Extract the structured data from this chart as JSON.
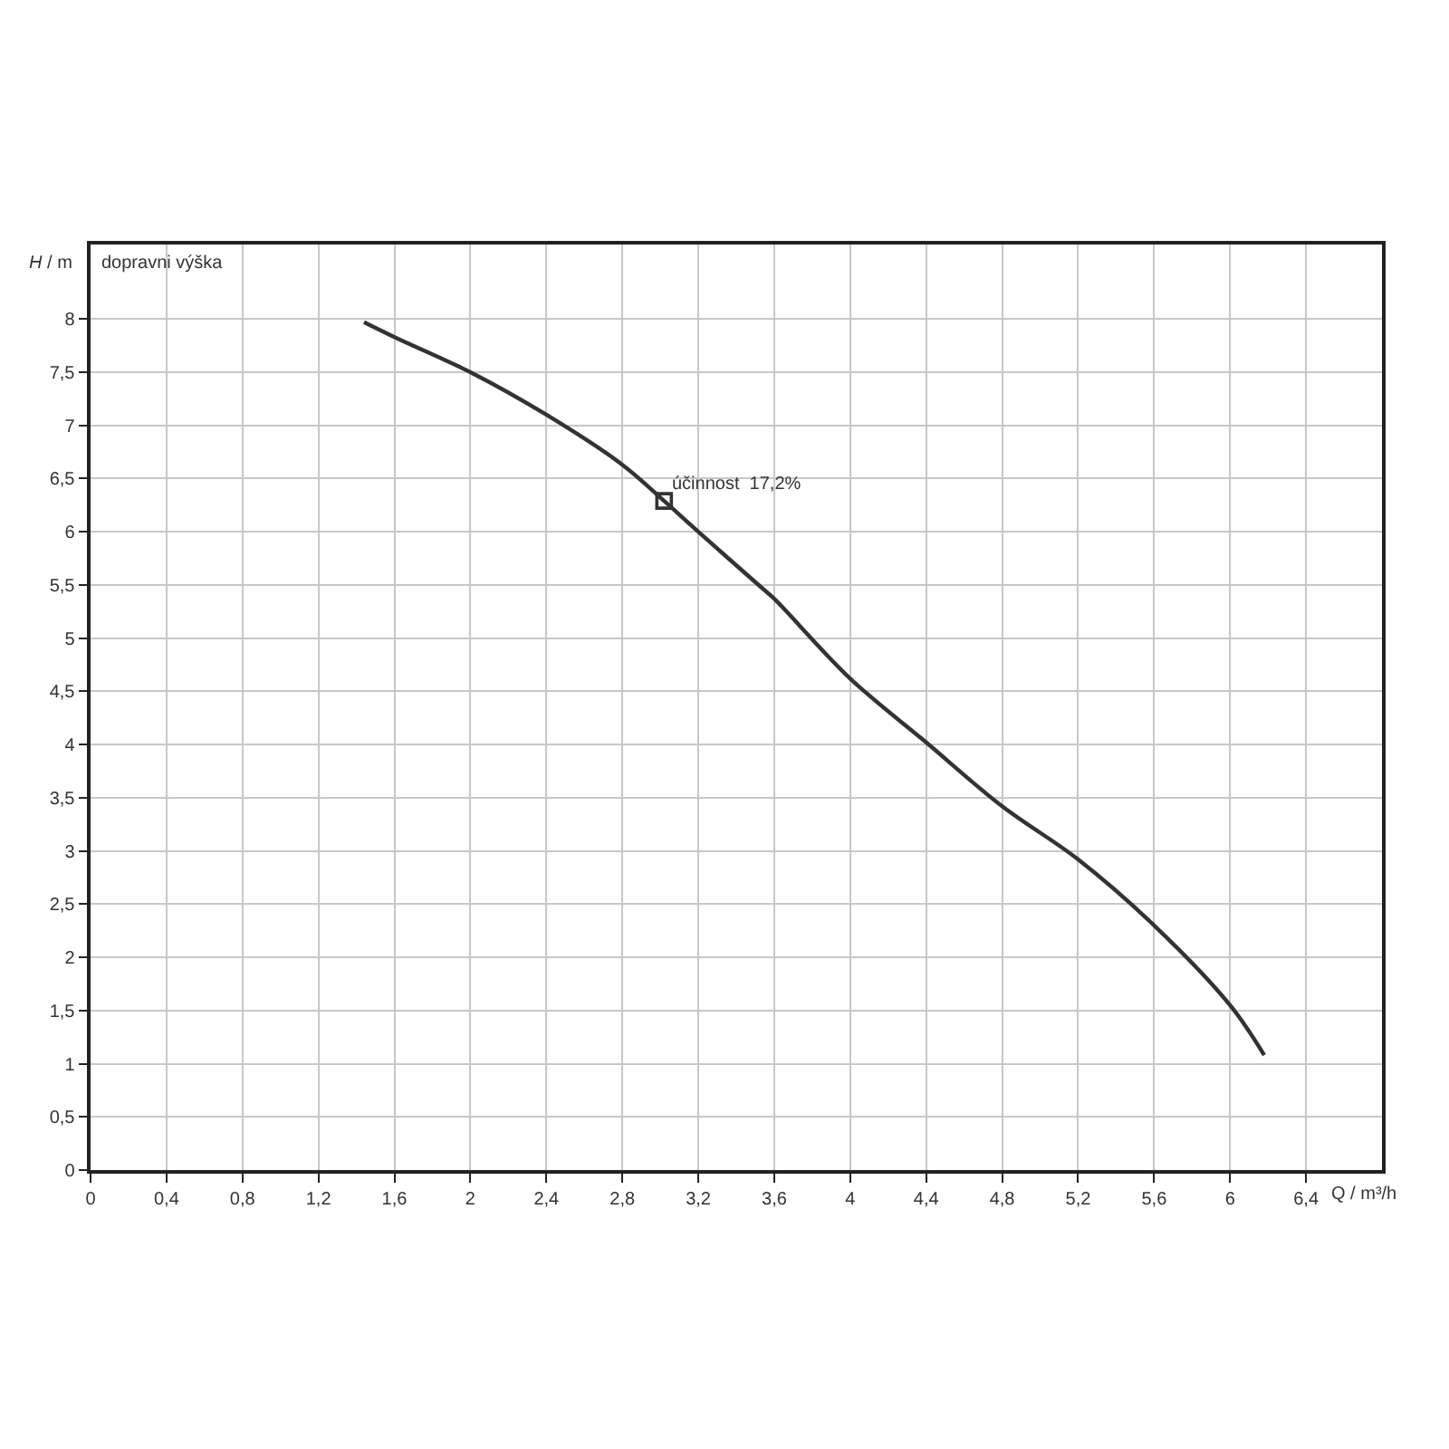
{
  "chart_data": {
    "type": "line",
    "xlabel": "Q / m³/h",
    "ylabel": "H / m",
    "annotations": [
      "dopravni výška",
      {
        "text": "účinnost  17,2%",
        "x": 3.02,
        "y": 6.29
      }
    ],
    "x": [
      1.44,
      1.6,
      2.0,
      2.4,
      2.8,
      3.02,
      3.2,
      3.53,
      3.6,
      4.0,
      4.4,
      4.8,
      5.2,
      5.6,
      6.0,
      6.18
    ],
    "series": [
      {
        "color": "#333333",
        "values": [
          7.97,
          7.83,
          7.5,
          7.1,
          6.63,
          6.29,
          6.0,
          5.48,
          5.37,
          4.62,
          4.02,
          3.42,
          2.92,
          2.3,
          1.55,
          1.08
        ]
      },
      {
        "type": "scatter",
        "marker": "square",
        "color": "#333333",
        "x": [
          3.02
        ],
        "values": [
          6.29
        ]
      }
    ],
    "xlim": [
      0,
      6.8
    ],
    "ylim": [
      0,
      8.7
    ],
    "xticks": [
      0,
      {
        "value": 0.4,
        "label": "0,4"
      },
      {
        "value": 0.8,
        "label": "0,8"
      },
      {
        "value": 1.2,
        "label": "1,2"
      },
      {
        "value": 1.6,
        "label": "1,6"
      },
      2,
      {
        "value": 2.4,
        "label": "2,4"
      },
      {
        "value": 2.8,
        "label": "2,8"
      },
      {
        "value": 3.2,
        "label": "3,2"
      },
      {
        "value": 3.6,
        "label": "3,6"
      },
      4,
      {
        "value": 4.4,
        "label": "4,4"
      },
      {
        "value": 4.8,
        "label": "4,8"
      },
      {
        "value": 5.2,
        "label": "5,2"
      },
      {
        "value": 5.6,
        "label": "5,6"
      },
      6,
      {
        "value": 6.4,
        "label": "6,4"
      }
    ],
    "yticks": [
      0,
      {
        "value": 0.5,
        "label": "0,5"
      },
      1,
      {
        "value": 1.5,
        "label": "1,5"
      },
      2,
      {
        "value": 2.5,
        "label": "2,5"
      },
      3,
      {
        "value": 3.5,
        "label": "3,5"
      },
      4,
      {
        "value": 4.5,
        "label": "4,5"
      },
      5,
      {
        "value": 5.5,
        "label": "5,5"
      },
      6,
      {
        "value": 6.5,
        "label": "6,5"
      },
      7,
      {
        "value": 7.5,
        "label": "7,5"
      },
      8
    ],
    "grid": true
  }
}
